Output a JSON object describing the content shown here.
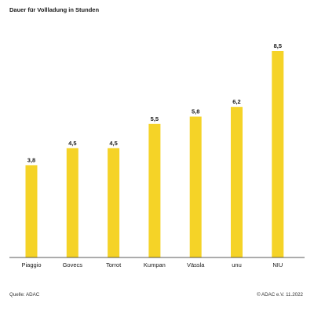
{
  "header": {
    "title": "Dauer für Vollladung in Stunden"
  },
  "footer": {
    "source": "Quelle: ADAC",
    "copyright": "© ADAC e.V. 11.2022"
  },
  "chart_data": {
    "type": "bar",
    "title": "Dauer für Vollladung in Stunden",
    "categories": [
      "Piaggio",
      "Govecs",
      "Torrot",
      "Kumpan",
      "Vässla",
      "unu",
      "NIU"
    ],
    "values": [
      3.8,
      4.5,
      4.5,
      5.5,
      5.8,
      6.2,
      8.5
    ],
    "value_labels": [
      "3,8",
      "4,5",
      "4,5",
      "5,5",
      "5,8",
      "6,2",
      "8,5"
    ],
    "xlabel": "",
    "ylabel": "",
    "ylim": [
      0,
      8.5
    ],
    "grid": false,
    "bar_color": "#f5d327",
    "axis_color": "#222222"
  }
}
